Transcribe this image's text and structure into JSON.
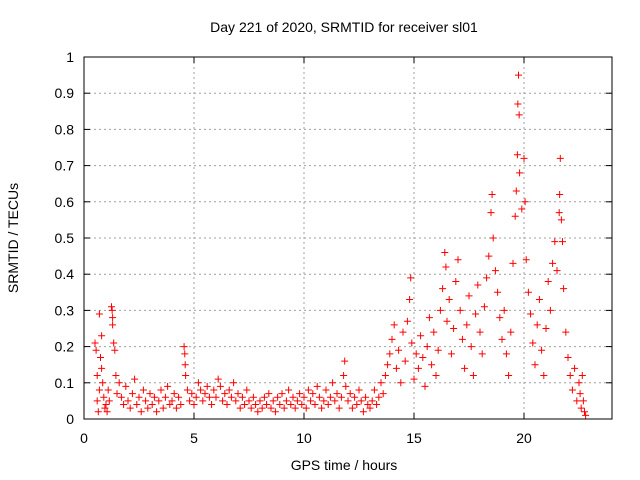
{
  "chart_data": {
    "type": "scatter",
    "title": "Day 221 of 2020, SRMTID for receiver sl01",
    "xlabel": "GPS time / hours",
    "ylabel": "SRMTID / TECUs",
    "xlim": [
      0,
      24
    ],
    "ylim": [
      0,
      1
    ],
    "xticks": [
      0,
      5,
      10,
      15,
      20
    ],
    "xtick_labels": [
      "0",
      "5",
      "10",
      "15",
      "20"
    ],
    "yticks": [
      0,
      0.1,
      0.2,
      0.3,
      0.4,
      0.5,
      0.6,
      0.7,
      0.8,
      0.9,
      1
    ],
    "ytick_labels": [
      "0",
      "0.1",
      "0.2",
      "0.3",
      "0.4",
      "0.5",
      "0.6",
      "0.7",
      "0.8",
      "0.9",
      "1"
    ],
    "grid": true,
    "marker": "+",
    "color": "#ff0000",
    "series": [
      {
        "name": "sl01",
        "points": [
          [
            0.5,
            0.21
          ],
          [
            0.55,
            0.19
          ],
          [
            0.6,
            0.12
          ],
          [
            0.6,
            0.05
          ],
          [
            0.65,
            0.02
          ],
          [
            0.7,
            0.29
          ],
          [
            0.7,
            0.08
          ],
          [
            0.75,
            0.17
          ],
          [
            0.8,
            0.14
          ],
          [
            0.8,
            0.23
          ],
          [
            0.85,
            0.1
          ],
          [
            0.9,
            0.06
          ],
          [
            0.95,
            0.03
          ],
          [
            1.0,
            0.04
          ],
          [
            1.05,
            0.02
          ],
          [
            1.1,
            0.08
          ],
          [
            1.15,
            0.05
          ],
          [
            1.25,
            0.31
          ],
          [
            1.28,
            0.3
          ],
          [
            1.3,
            0.28
          ],
          [
            1.3,
            0.26
          ],
          [
            1.35,
            0.21
          ],
          [
            1.4,
            0.19
          ],
          [
            1.45,
            0.12
          ],
          [
            1.5,
            0.07
          ],
          [
            1.6,
            0.1
          ],
          [
            1.7,
            0.06
          ],
          [
            1.8,
            0.04
          ],
          [
            1.9,
            0.09
          ],
          [
            2.0,
            0.05
          ],
          [
            2.1,
            0.03
          ],
          [
            2.2,
            0.07
          ],
          [
            2.3,
            0.11
          ],
          [
            2.4,
            0.04
          ],
          [
            2.5,
            0.06
          ],
          [
            2.6,
            0.02
          ],
          [
            2.7,
            0.08
          ],
          [
            2.8,
            0.05
          ],
          [
            2.9,
            0.03
          ],
          [
            3.0,
            0.07
          ],
          [
            3.1,
            0.04
          ],
          [
            3.2,
            0.06
          ],
          [
            3.3,
            0.02
          ],
          [
            3.4,
            0.05
          ],
          [
            3.5,
            0.08
          ],
          [
            3.6,
            0.03
          ],
          [
            3.7,
            0.06
          ],
          [
            3.8,
            0.09
          ],
          [
            3.9,
            0.04
          ],
          [
            4.0,
            0.05
          ],
          [
            4.1,
            0.07
          ],
          [
            4.2,
            0.03
          ],
          [
            4.3,
            0.06
          ],
          [
            4.4,
            0.04
          ],
          [
            4.55,
            0.2
          ],
          [
            4.58,
            0.18
          ],
          [
            4.6,
            0.15
          ],
          [
            4.62,
            0.12
          ],
          [
            4.7,
            0.08
          ],
          [
            4.8,
            0.05
          ],
          [
            4.9,
            0.07
          ],
          [
            5.0,
            0.04
          ],
          [
            5.1,
            0.06
          ],
          [
            5.2,
            0.1
          ],
          [
            5.3,
            0.08
          ],
          [
            5.4,
            0.05
          ],
          [
            5.5,
            0.07
          ],
          [
            5.6,
            0.09
          ],
          [
            5.7,
            0.06
          ],
          [
            5.8,
            0.04
          ],
          [
            5.9,
            0.08
          ],
          [
            6.0,
            0.06
          ],
          [
            6.1,
            0.11
          ],
          [
            6.2,
            0.09
          ],
          [
            6.3,
            0.05
          ],
          [
            6.4,
            0.07
          ],
          [
            6.5,
            0.04
          ],
          [
            6.6,
            0.08
          ],
          [
            6.7,
            0.06
          ],
          [
            6.8,
            0.1
          ],
          [
            6.9,
            0.05
          ],
          [
            7.0,
            0.07
          ],
          [
            7.1,
            0.03
          ],
          [
            7.2,
            0.06
          ],
          [
            7.3,
            0.04
          ],
          [
            7.4,
            0.08
          ],
          [
            7.5,
            0.05
          ],
          [
            7.6,
            0.03
          ],
          [
            7.7,
            0.06
          ],
          [
            7.8,
            0.04
          ],
          [
            7.9,
            0.02
          ],
          [
            8.0,
            0.05
          ],
          [
            8.1,
            0.03
          ],
          [
            8.2,
            0.06
          ],
          [
            8.3,
            0.04
          ],
          [
            8.4,
            0.07
          ],
          [
            8.5,
            0.03
          ],
          [
            8.6,
            0.05
          ],
          [
            8.7,
            0.02
          ],
          [
            8.8,
            0.06
          ],
          [
            8.9,
            0.04
          ],
          [
            9.0,
            0.07
          ],
          [
            9.1,
            0.03
          ],
          [
            9.2,
            0.05
          ],
          [
            9.3,
            0.08
          ],
          [
            9.4,
            0.04
          ],
          [
            9.5,
            0.06
          ],
          [
            9.6,
            0.03
          ],
          [
            9.7,
            0.05
          ],
          [
            9.8,
            0.07
          ],
          [
            9.9,
            0.04
          ],
          [
            10.0,
            0.06
          ],
          [
            10.1,
            0.03
          ],
          [
            10.2,
            0.08
          ],
          [
            10.3,
            0.05
          ],
          [
            10.4,
            0.07
          ],
          [
            10.5,
            0.04
          ],
          [
            10.6,
            0.09
          ],
          [
            10.7,
            0.06
          ],
          [
            10.8,
            0.03
          ],
          [
            10.9,
            0.05
          ],
          [
            11.0,
            0.08
          ],
          [
            11.1,
            0.04
          ],
          [
            11.2,
            0.06
          ],
          [
            11.3,
            0.1
          ],
          [
            11.4,
            0.05
          ],
          [
            11.5,
            0.07
          ],
          [
            11.6,
            0.03
          ],
          [
            11.7,
            0.06
          ],
          [
            11.8,
            0.12
          ],
          [
            11.85,
            0.16
          ],
          [
            11.9,
            0.09
          ],
          [
            12.0,
            0.05
          ],
          [
            12.1,
            0.07
          ],
          [
            12.2,
            0.03
          ],
          [
            12.3,
            0.06
          ],
          [
            12.4,
            0.04
          ],
          [
            12.5,
            0.08
          ],
          [
            12.6,
            0.05
          ],
          [
            12.7,
            0.02
          ],
          [
            12.8,
            0.06
          ],
          [
            12.9,
            0.04
          ],
          [
            13.0,
            0.03
          ],
          [
            13.1,
            0.05
          ],
          [
            13.2,
            0.08
          ],
          [
            13.3,
            0.04
          ],
          [
            13.4,
            0.06
          ],
          [
            13.5,
            0.1
          ],
          [
            13.6,
            0.07
          ],
          [
            13.7,
            0.12
          ],
          [
            13.8,
            0.15
          ],
          [
            13.9,
            0.18
          ],
          [
            14.0,
            0.22
          ],
          [
            14.1,
            0.26
          ],
          [
            14.2,
            0.14
          ],
          [
            14.3,
            0.19
          ],
          [
            14.4,
            0.1
          ],
          [
            14.5,
            0.24
          ],
          [
            14.6,
            0.16
          ],
          [
            14.7,
            0.27
          ],
          [
            14.8,
            0.33
          ],
          [
            14.85,
            0.39
          ],
          [
            14.9,
            0.21
          ],
          [
            15.0,
            0.11
          ],
          [
            15.1,
            0.18
          ],
          [
            15.2,
            0.14
          ],
          [
            15.3,
            0.23
          ],
          [
            15.4,
            0.17
          ],
          [
            15.5,
            0.09
          ],
          [
            15.6,
            0.2
          ],
          [
            15.7,
            0.28
          ],
          [
            15.8,
            0.15
          ],
          [
            15.9,
            0.24
          ],
          [
            16.0,
            0.12
          ],
          [
            16.1,
            0.19
          ],
          [
            16.2,
            0.3
          ],
          [
            16.3,
            0.36
          ],
          [
            16.4,
            0.46
          ],
          [
            16.45,
            0.42
          ],
          [
            16.5,
            0.27
          ],
          [
            16.6,
            0.33
          ],
          [
            16.7,
            0.18
          ],
          [
            16.8,
            0.25
          ],
          [
            16.9,
            0.38
          ],
          [
            17.0,
            0.44
          ],
          [
            17.1,
            0.3
          ],
          [
            17.2,
            0.22
          ],
          [
            17.3,
            0.14
          ],
          [
            17.4,
            0.26
          ],
          [
            17.5,
            0.34
          ],
          [
            17.6,
            0.2
          ],
          [
            17.7,
            0.12
          ],
          [
            17.8,
            0.29
          ],
          [
            17.9,
            0.37
          ],
          [
            18.0,
            0.24
          ],
          [
            18.1,
            0.18
          ],
          [
            18.2,
            0.31
          ],
          [
            18.3,
            0.39
          ],
          [
            18.4,
            0.45
          ],
          [
            18.5,
            0.57
          ],
          [
            18.55,
            0.62
          ],
          [
            18.6,
            0.5
          ],
          [
            18.7,
            0.41
          ],
          [
            18.8,
            0.35
          ],
          [
            18.9,
            0.28
          ],
          [
            19.0,
            0.22
          ],
          [
            19.1,
            0.3
          ],
          [
            19.2,
            0.18
          ],
          [
            19.3,
            0.12
          ],
          [
            19.4,
            0.24
          ],
          [
            19.5,
            0.43
          ],
          [
            19.6,
            0.56
          ],
          [
            19.65,
            0.63
          ],
          [
            19.7,
            0.73
          ],
          [
            19.72,
            0.87
          ],
          [
            19.75,
            0.95
          ],
          [
            19.78,
            0.84
          ],
          [
            19.8,
            0.68
          ],
          [
            19.9,
            0.58
          ],
          [
            20.0,
            0.72
          ],
          [
            20.05,
            0.6
          ],
          [
            20.1,
            0.44
          ],
          [
            20.2,
            0.35
          ],
          [
            20.3,
            0.29
          ],
          [
            20.4,
            0.21
          ],
          [
            20.5,
            0.15
          ],
          [
            20.6,
            0.26
          ],
          [
            20.7,
            0.33
          ],
          [
            20.8,
            0.19
          ],
          [
            20.9,
            0.12
          ],
          [
            21.0,
            0.25
          ],
          [
            21.1,
            0.38
          ],
          [
            21.2,
            0.3
          ],
          [
            21.3,
            0.43
          ],
          [
            21.4,
            0.49
          ],
          [
            21.5,
            0.41
          ],
          [
            21.6,
            0.57
          ],
          [
            21.62,
            0.62
          ],
          [
            21.65,
            0.72
          ],
          [
            21.7,
            0.55
          ],
          [
            21.75,
            0.49
          ],
          [
            21.8,
            0.36
          ],
          [
            21.9,
            0.24
          ],
          [
            22.0,
            0.17
          ],
          [
            22.1,
            0.12
          ],
          [
            22.2,
            0.08
          ],
          [
            22.3,
            0.14
          ],
          [
            22.4,
            0.05
          ],
          [
            22.5,
            0.1
          ],
          [
            22.55,
            0.07
          ],
          [
            22.6,
            0.03
          ],
          [
            22.65,
            0.12
          ],
          [
            22.7,
            0.05
          ],
          [
            22.75,
            0.02
          ],
          [
            22.8,
            0.01
          ]
        ]
      }
    ]
  }
}
